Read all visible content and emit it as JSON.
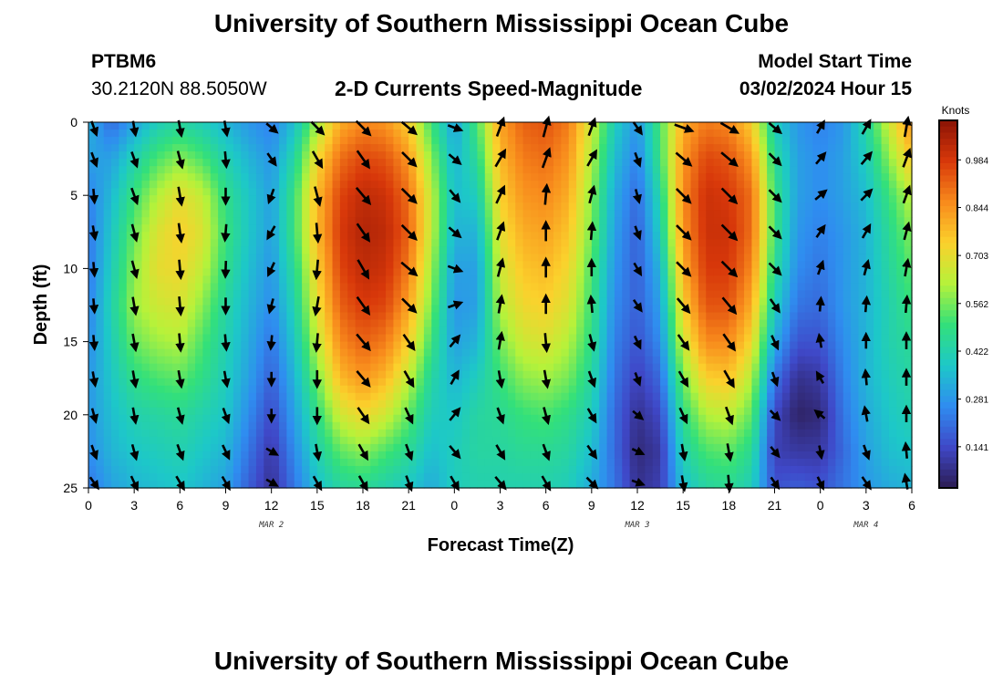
{
  "header": {
    "title": "University of Southern Mississippi Ocean Cube",
    "station_id": "PTBM6",
    "coords": "30.2120N  88.5050W",
    "chart_title": "2-D Currents Speed-Magnitude",
    "model_start_label": "Model Start Time",
    "model_start_value": "03/02/2024 Hour 15"
  },
  "footer": {
    "title": "University of Southern Mississippi Ocean Cube"
  },
  "chart_data": {
    "type": "heatmap",
    "title": "2-D Currents Speed-Magnitude",
    "xlabel": "Forecast Time(Z)",
    "ylabel": "Depth (ft)",
    "x_tick_labels": [
      "0",
      "3",
      "6",
      "9",
      "12",
      "15",
      "18",
      "21",
      "0",
      "3",
      "6",
      "9",
      "12",
      "15",
      "18",
      "21",
      "0",
      "3",
      "6"
    ],
    "x_range_hours": [
      0,
      54
    ],
    "date_labels": [
      {
        "text": "MAR 2",
        "at_hour": 12
      },
      {
        "text": "MAR 3",
        "at_hour": 36
      },
      {
        "text": "MAR 4",
        "at_hour": 51
      }
    ],
    "y_ticks": [
      0,
      5,
      10,
      15,
      20,
      25
    ],
    "ylim": [
      0,
      25
    ],
    "y_inverted": true,
    "colorbar": {
      "title": "Knots",
      "ticks": [
        0.141,
        0.281,
        0.422,
        0.562,
        0.703,
        0.844,
        0.984
      ],
      "range": [
        0.02,
        1.1
      ],
      "colors": [
        "#2c1c52",
        "#3f48c8",
        "#2f8df0",
        "#1dc8c8",
        "#33e07a",
        "#b6f23a",
        "#fbd12c",
        "#f88a1c",
        "#d8380a",
        "#8a1305"
      ]
    },
    "speed_columns_knots": [
      {
        "hour": 0,
        "speeds": [
          0.34,
          0.3,
          0.24,
          0.22,
          0.22,
          0.24,
          0.26,
          0.28,
          0.28,
          0.26,
          0.22
        ]
      },
      {
        "hour": 1.5,
        "speeds": [
          0.2,
          0.3,
          0.35,
          0.38,
          0.4,
          0.42,
          0.4,
          0.38,
          0.36,
          0.34,
          0.3
        ]
      },
      {
        "hour": 3,
        "speeds": [
          0.3,
          0.42,
          0.5,
          0.55,
          0.58,
          0.6,
          0.55,
          0.48,
          0.42,
          0.38,
          0.34
        ]
      },
      {
        "hour": 4.5,
        "speeds": [
          0.4,
          0.52,
          0.62,
          0.68,
          0.7,
          0.66,
          0.6,
          0.52,
          0.44,
          0.4,
          0.36
        ]
      },
      {
        "hour": 6,
        "speeds": [
          0.44,
          0.58,
          0.7,
          0.74,
          0.72,
          0.68,
          0.62,
          0.54,
          0.46,
          0.42,
          0.38
        ]
      },
      {
        "hour": 7.5,
        "speeds": [
          0.4,
          0.52,
          0.64,
          0.68,
          0.64,
          0.58,
          0.52,
          0.48,
          0.42,
          0.38,
          0.34
        ]
      },
      {
        "hour": 9,
        "speeds": [
          0.34,
          0.42,
          0.48,
          0.5,
          0.48,
          0.44,
          0.42,
          0.4,
          0.38,
          0.34,
          0.3
        ]
      },
      {
        "hour": 10.5,
        "speeds": [
          0.28,
          0.34,
          0.38,
          0.38,
          0.36,
          0.34,
          0.32,
          0.3,
          0.26,
          0.22,
          0.18
        ]
      },
      {
        "hour": 12,
        "speeds": [
          0.24,
          0.28,
          0.3,
          0.3,
          0.28,
          0.26,
          0.22,
          0.18,
          0.14,
          0.1,
          0.08
        ]
      },
      {
        "hour": 13.5,
        "speeds": [
          0.36,
          0.44,
          0.5,
          0.5,
          0.46,
          0.42,
          0.38,
          0.34,
          0.3,
          0.26,
          0.22
        ]
      },
      {
        "hour": 15,
        "speeds": [
          0.6,
          0.72,
          0.78,
          0.78,
          0.74,
          0.7,
          0.64,
          0.56,
          0.48,
          0.42,
          0.36
        ]
      },
      {
        "hour": 16.5,
        "speeds": [
          0.8,
          0.9,
          0.96,
          0.98,
          0.96,
          0.92,
          0.86,
          0.78,
          0.66,
          0.54,
          0.44
        ]
      },
      {
        "hour": 18,
        "speeds": [
          0.86,
          0.96,
          1.02,
          1.04,
          1.02,
          0.98,
          0.92,
          0.84,
          0.72,
          0.58,
          0.46
        ]
      },
      {
        "hour": 19.5,
        "speeds": [
          0.84,
          0.94,
          1.0,
          1.02,
          1.0,
          0.96,
          0.88,
          0.78,
          0.66,
          0.52,
          0.42
        ]
      },
      {
        "hour": 21,
        "speeds": [
          0.74,
          0.84,
          0.9,
          0.92,
          0.88,
          0.82,
          0.74,
          0.64,
          0.54,
          0.46,
          0.38
        ]
      },
      {
        "hour": 22.5,
        "speeds": [
          0.5,
          0.58,
          0.64,
          0.64,
          0.6,
          0.56,
          0.5,
          0.44,
          0.4,
          0.36,
          0.32
        ]
      },
      {
        "hour": 24,
        "speeds": [
          0.3,
          0.34,
          0.36,
          0.34,
          0.3,
          0.28,
          0.3,
          0.34,
          0.38,
          0.4,
          0.4
        ]
      },
      {
        "hour": 25.5,
        "speeds": [
          0.52,
          0.46,
          0.4,
          0.34,
          0.3,
          0.3,
          0.34,
          0.4,
          0.44,
          0.44,
          0.42
        ]
      },
      {
        "hour": 27,
        "speeds": [
          0.82,
          0.78,
          0.74,
          0.7,
          0.66,
          0.62,
          0.56,
          0.5,
          0.46,
          0.44,
          0.42
        ]
      },
      {
        "hour": 28.5,
        "speeds": [
          0.92,
          0.88,
          0.84,
          0.8,
          0.76,
          0.72,
          0.66,
          0.58,
          0.5,
          0.46,
          0.42
        ]
      },
      {
        "hour": 30,
        "speeds": [
          0.94,
          0.9,
          0.86,
          0.82,
          0.78,
          0.74,
          0.68,
          0.6,
          0.52,
          0.46,
          0.42
        ]
      },
      {
        "hour": 31.5,
        "speeds": [
          0.88,
          0.84,
          0.8,
          0.76,
          0.72,
          0.68,
          0.62,
          0.56,
          0.48,
          0.44,
          0.4
        ]
      },
      {
        "hour": 33,
        "speeds": [
          0.66,
          0.62,
          0.58,
          0.56,
          0.52,
          0.5,
          0.48,
          0.44,
          0.4,
          0.36,
          0.32
        ]
      },
      {
        "hour": 34.5,
        "speeds": [
          0.4,
          0.36,
          0.32,
          0.3,
          0.28,
          0.26,
          0.24,
          0.22,
          0.2,
          0.2,
          0.22
        ]
      },
      {
        "hour": 36,
        "speeds": [
          0.28,
          0.24,
          0.2,
          0.18,
          0.18,
          0.18,
          0.16,
          0.12,
          0.08,
          0.06,
          0.08
        ]
      },
      {
        "hour": 37.5,
        "speeds": [
          0.52,
          0.5,
          0.44,
          0.4,
          0.34,
          0.3,
          0.26,
          0.2,
          0.14,
          0.1,
          0.12
        ]
      },
      {
        "hour": 39,
        "speeds": [
          0.8,
          0.84,
          0.86,
          0.84,
          0.8,
          0.74,
          0.66,
          0.56,
          0.48,
          0.42,
          0.36
        ]
      },
      {
        "hour": 40.5,
        "speeds": [
          0.88,
          0.96,
          1.0,
          1.0,
          0.98,
          0.94,
          0.86,
          0.74,
          0.62,
          0.52,
          0.44
        ]
      },
      {
        "hour": 42,
        "speeds": [
          0.86,
          0.94,
          0.98,
          1.0,
          0.98,
          0.94,
          0.86,
          0.76,
          0.64,
          0.54,
          0.46
        ]
      },
      {
        "hour": 43.5,
        "speeds": [
          0.74,
          0.84,
          0.9,
          0.9,
          0.86,
          0.8,
          0.72,
          0.62,
          0.54,
          0.46,
          0.4
        ]
      },
      {
        "hour": 45,
        "speeds": [
          0.4,
          0.46,
          0.5,
          0.5,
          0.46,
          0.4,
          0.32,
          0.22,
          0.14,
          0.12,
          0.16
        ]
      },
      {
        "hour": 46.5,
        "speeds": [
          0.28,
          0.3,
          0.3,
          0.28,
          0.26,
          0.22,
          0.16,
          0.08,
          0.04,
          0.1,
          0.18
        ]
      },
      {
        "hour": 48,
        "speeds": [
          0.24,
          0.26,
          0.26,
          0.24,
          0.22,
          0.2,
          0.16,
          0.1,
          0.06,
          0.1,
          0.16
        ]
      },
      {
        "hour": 49.5,
        "speeds": [
          0.28,
          0.3,
          0.3,
          0.28,
          0.28,
          0.28,
          0.26,
          0.24,
          0.22,
          0.2,
          0.22
        ]
      },
      {
        "hour": 51,
        "speeds": [
          0.44,
          0.4,
          0.36,
          0.34,
          0.34,
          0.34,
          0.34,
          0.34,
          0.32,
          0.3,
          0.28
        ]
      },
      {
        "hour": 52.5,
        "speeds": [
          0.66,
          0.58,
          0.5,
          0.46,
          0.44,
          0.42,
          0.42,
          0.4,
          0.38,
          0.36,
          0.32
        ]
      },
      {
        "hour": 54,
        "speeds": [
          0.86,
          0.76,
          0.64,
          0.58,
          0.54,
          0.5,
          0.46,
          0.44,
          0.42,
          0.38,
          0.34
        ]
      }
    ],
    "vectors": [
      {
        "hour": 0,
        "angles": [
          200,
          200,
          185,
          190,
          185,
          185,
          185,
          190,
          195,
          200,
          215
        ]
      },
      {
        "hour": 3,
        "angles": [
          190,
          200,
          200,
          195,
          195,
          190,
          190,
          190,
          190,
          195,
          205
        ]
      },
      {
        "hour": 6,
        "angles": [
          190,
          195,
          190,
          188,
          185,
          185,
          185,
          190,
          195,
          200,
          210
        ]
      },
      {
        "hour": 9,
        "angles": [
          190,
          185,
          180,
          175,
          178,
          180,
          185,
          190,
          200,
          205,
          210
        ]
      },
      {
        "hour": 12,
        "angles": [
          230,
          215,
          160,
          150,
          155,
          165,
          175,
          180,
          180,
          240,
          240
        ]
      },
      {
        "hour": 15,
        "angles": [
          225,
          210,
          195,
          185,
          175,
          170,
          175,
          180,
          180,
          190,
          210
        ]
      },
      {
        "hour": 18,
        "angles": [
          225,
          215,
          220,
          215,
          210,
          215,
          220,
          220,
          215,
          210,
          210
        ]
      },
      {
        "hour": 21,
        "angles": [
          230,
          225,
          225,
          225,
          230,
          225,
          215,
          210,
          205,
          200,
          200
        ]
      },
      {
        "hour": 24,
        "angles": [
          250,
          230,
          220,
          230,
          250,
          290,
          320,
          330,
          320,
          220,
          210
        ]
      },
      {
        "hour": 27,
        "angles": [
          340,
          330,
          335,
          340,
          345,
          350,
          350,
          190,
          200,
          210,
          220
        ]
      },
      {
        "hour": 30,
        "angles": [
          345,
          340,
          355,
          0,
          0,
          0,
          185,
          190,
          195,
          200,
          210
        ]
      },
      {
        "hour": 33,
        "angles": [
          340,
          330,
          345,
          355,
          0,
          5,
          195,
          200,
          210,
          215,
          225
        ]
      },
      {
        "hour": 36,
        "angles": [
          215,
          200,
          195,
          200,
          210,
          215,
          205,
          200,
          230,
          245,
          250
        ]
      },
      {
        "hour": 39,
        "angles": [
          250,
          230,
          225,
          225,
          225,
          220,
          215,
          210,
          205,
          190,
          190
        ]
      },
      {
        "hour": 42,
        "angles": [
          240,
          230,
          225,
          225,
          225,
          220,
          215,
          210,
          200,
          190,
          185
        ]
      },
      {
        "hour": 45,
        "angles": [
          230,
          225,
          225,
          225,
          225,
          215,
          205,
          200,
          225,
          220,
          215
        ]
      },
      {
        "hour": 48,
        "angles": [
          330,
          320,
          310,
          325,
          340,
          355,
          10,
          30,
          50,
          190,
          205
        ]
      },
      {
        "hour": 51,
        "angles": [
          330,
          320,
          315,
          330,
          345,
          355,
          0,
          5,
          10,
          200,
          215
        ]
      },
      {
        "hour": 54,
        "angles": [
          350,
          340,
          340,
          345,
          350,
          355,
          0,
          0,
          0,
          5,
          10
        ]
      }
    ]
  }
}
